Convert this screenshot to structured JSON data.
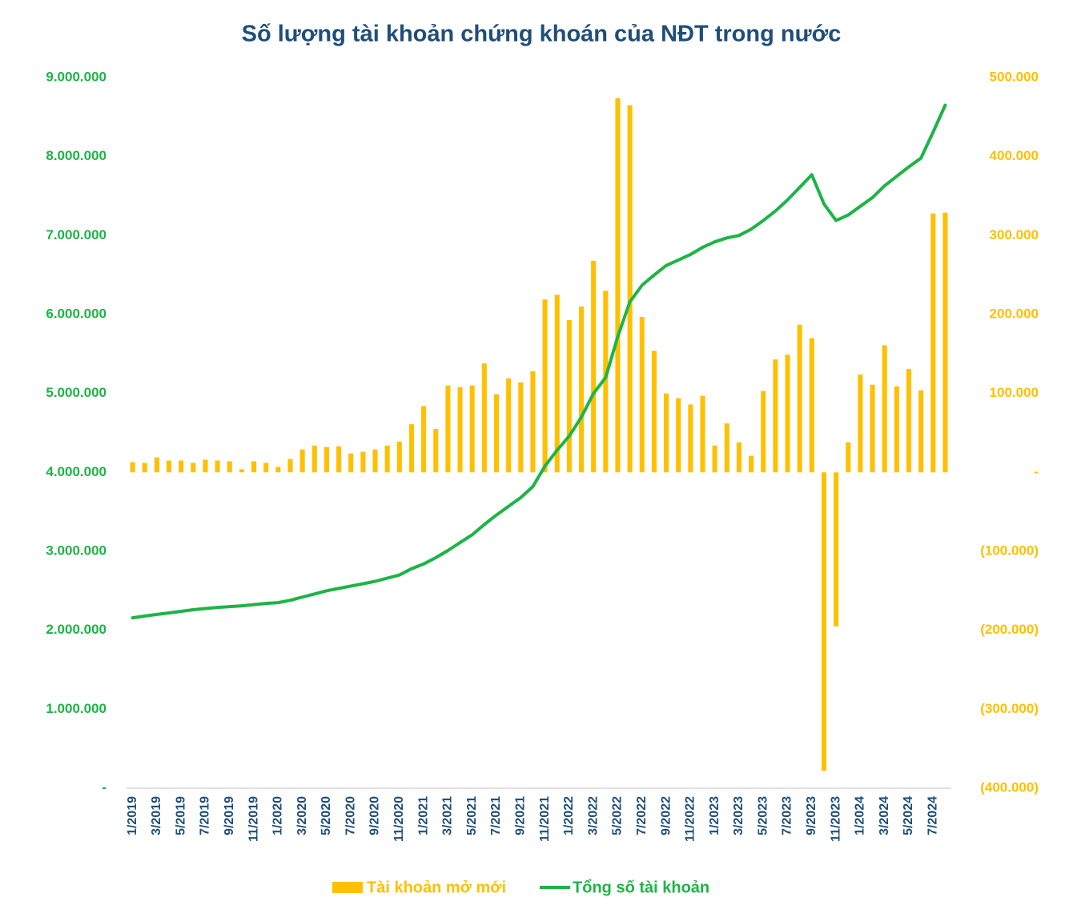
{
  "chart_data": {
    "type": "bar-line",
    "title": "Số lượng tài khoản chứng khoán của NĐT trong nước",
    "categories": [
      "1/2019",
      null,
      "3/2019",
      null,
      "5/2019",
      null,
      "7/2019",
      null,
      "9/2019",
      null,
      "11/2019",
      null,
      "1/2020",
      null,
      "3/2020",
      null,
      "5/2020",
      null,
      "7/2020",
      null,
      "9/2020",
      null,
      "11/2020",
      null,
      "1/2021",
      null,
      "3/2021",
      null,
      "5/2021",
      null,
      "7/2021",
      null,
      "9/2021",
      null,
      "11/2021",
      null,
      "1/2022",
      null,
      "3/2022",
      null,
      "5/2022",
      null,
      "7/2022",
      null,
      "9/2022",
      null,
      "11/2022",
      null,
      "1/2023",
      null,
      "3/2023",
      null,
      "5/2023",
      null,
      "7/2023",
      null,
      "9/2023",
      null,
      "11/2023",
      null,
      "1/2024",
      null,
      "3/2024",
      null,
      "5/2024",
      null,
      "7/2024",
      null
    ],
    "series": [
      {
        "name": "Tài khoản mở mới",
        "color": "#ffc000",
        "axis": "y2",
        "kind": "bar",
        "values": [
          13000,
          12000,
          19000,
          15000,
          15000,
          12000,
          16000,
          15000,
          14000,
          4000,
          14000,
          12000,
          7000,
          17000,
          29000,
          34000,
          32000,
          33000,
          24000,
          26000,
          29000,
          34000,
          39000,
          61000,
          84000,
          55000,
          110000,
          108000,
          110000,
          138000,
          99000,
          119000,
          114000,
          128000,
          219000,
          225000,
          193000,
          210000,
          268000,
          230000,
          474000,
          465000,
          197000,
          154000,
          100000,
          94000,
          86000,
          97000,
          34000,
          62000,
          38000,
          21000,
          103000,
          143000,
          149000,
          187000,
          170000,
          -378000,
          -195000,
          38000,
          124000,
          111000,
          161000,
          109000,
          131000,
          104000,
          328000,
          329000
        ]
      },
      {
        "name": "Tổng số tài khoản",
        "color": "#1db446",
        "kind": "line",
        "values": [
          2158000,
          2180000,
          2200000,
          2220000,
          2240000,
          2260000,
          2275000,
          2290000,
          2300000,
          2310000,
          2325000,
          2340000,
          2350000,
          2380000,
          2420000,
          2460000,
          2500000,
          2530000,
          2560000,
          2590000,
          2620000,
          2660000,
          2700000,
          2780000,
          2840000,
          2920000,
          3010000,
          3110000,
          3210000,
          3340000,
          3460000,
          3570000,
          3680000,
          3820000,
          4080000,
          4280000,
          4460000,
          4700000,
          5000000,
          5200000,
          5720000,
          6160000,
          6370000,
          6500000,
          6620000,
          6690000,
          6760000,
          6850000,
          6920000,
          6970000,
          7000000,
          7080000,
          7190000,
          7310000,
          7450000,
          7610000,
          7770000,
          7400000,
          7190000,
          7260000,
          7370000,
          7480000,
          7630000,
          7750000,
          7870000,
          7980000,
          8310000,
          8650000
        ]
      }
    ],
    "ylim": [
      0,
      9000000
    ],
    "yticks": [
      {
        "value": 0,
        "label": "-"
      },
      {
        "value": 1000000,
        "label": "1.000.000"
      },
      {
        "value": 2000000,
        "label": "2.000.000"
      },
      {
        "value": 3000000,
        "label": "3.000.000"
      },
      {
        "value": 4000000,
        "label": "4.000.000"
      },
      {
        "value": 5000000,
        "label": "5.000.000"
      },
      {
        "value": 6000000,
        "label": "6.000.000"
      },
      {
        "value": 7000000,
        "label": "7.000.000"
      },
      {
        "value": 8000000,
        "label": "8.000.000"
      },
      {
        "value": 9000000,
        "label": "9.000.000"
      }
    ],
    "y2lim": [
      -400000,
      500000
    ],
    "y2ticks": [
      {
        "value": -400000,
        "label": "(400.000)"
      },
      {
        "value": -300000,
        "label": "(300.000)"
      },
      {
        "value": -200000,
        "label": "(200.000)"
      },
      {
        "value": -100000,
        "label": "(100.000)"
      },
      {
        "value": 0,
        "label": "-"
      },
      {
        "value": 100000,
        "label": "100.000"
      },
      {
        "value": 200000,
        "label": "200.000"
      },
      {
        "value": 300000,
        "label": "300.000"
      },
      {
        "value": 400000,
        "label": "400.000"
      },
      {
        "value": 500000,
        "label": "500.000"
      }
    ],
    "y_tick_color": "#1db446",
    "y2_tick_color": "#ffc000",
    "grid": false,
    "legend": "bottom"
  }
}
